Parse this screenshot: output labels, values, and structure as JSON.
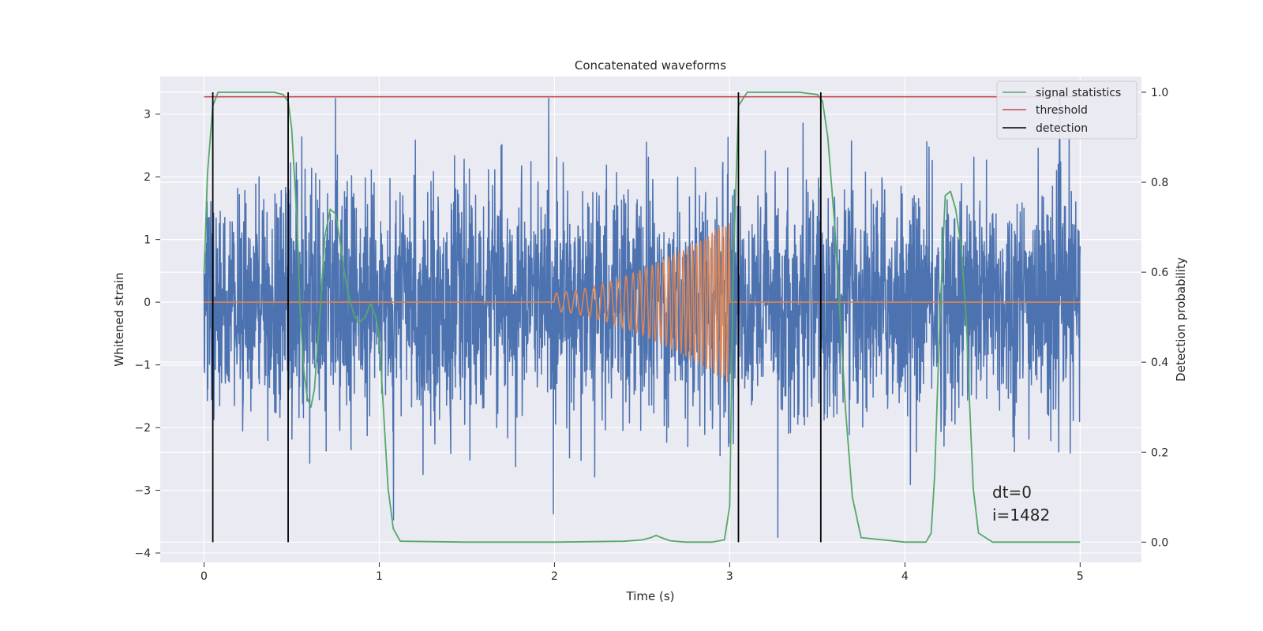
{
  "chart_data": {
    "type": "line",
    "title": "Concatenated waveforms",
    "xlabel": "Time (s)",
    "ylabel": "Whitened strain",
    "y2label": "Detection probability",
    "xlim": [
      -0.25,
      5.35
    ],
    "ylim": [
      -4.15,
      3.6
    ],
    "y2lim": [
      -0.045,
      1.035
    ],
    "x_ticks": [
      0,
      1,
      2,
      3,
      4,
      5
    ],
    "y_ticks": [
      -4,
      -3,
      -2,
      -1,
      0,
      1,
      2,
      3
    ],
    "y2_ticks": [
      0.0,
      0.2,
      0.4,
      0.6,
      0.8,
      1.0
    ],
    "grid": true,
    "legend_position": "upper right",
    "colors": {
      "background": "#eaeaf2",
      "grid": "#ffffff",
      "strain": "#4c72b0",
      "waveform": "#dd8452",
      "signal_statistics": "#55a868",
      "threshold": "#c44e52",
      "detection": "#000000"
    },
    "series": [
      {
        "name": "",
        "axis": "left",
        "kind": "noise",
        "x_range": [
          0,
          5
        ],
        "std": 0.9
      },
      {
        "name": "",
        "axis": "left",
        "kind": "chirp",
        "x_range": [
          0,
          5
        ],
        "chirp_start": 2.0,
        "chirp_end": 3.0,
        "amplitude_start": 0.15,
        "amplitude_end": 1.3,
        "freq_start": 18,
        "freq_end": 55
      },
      {
        "name": "signal statistics",
        "axis": "right",
        "x": [
          0.0,
          0.02,
          0.05,
          0.08,
          0.12,
          0.4,
          0.45,
          0.48,
          0.5,
          0.53,
          0.55,
          0.57,
          0.59,
          0.61,
          0.63,
          0.66,
          0.69,
          0.72,
          0.75,
          0.78,
          0.8,
          0.83,
          0.86,
          0.89,
          0.92,
          0.95,
          0.98,
          1.0,
          1.02,
          1.05,
          1.08,
          1.12,
          1.5,
          2.0,
          2.4,
          2.5,
          2.55,
          2.58,
          2.61,
          2.66,
          2.75,
          2.9,
          2.97,
          3.0,
          3.02,
          3.05,
          3.1,
          3.4,
          3.5,
          3.53,
          3.56,
          3.6,
          3.63,
          3.66,
          3.7,
          3.75,
          4.0,
          4.12,
          4.15,
          4.17,
          4.2,
          4.23,
          4.26,
          4.29,
          4.32,
          4.35,
          4.37,
          4.39,
          4.42,
          4.5,
          5.0
        ],
        "y": [
          0.6,
          0.82,
          0.97,
          1.0,
          1.0,
          1.0,
          0.995,
          0.98,
          0.92,
          0.72,
          0.5,
          0.38,
          0.32,
          0.3,
          0.34,
          0.5,
          0.68,
          0.74,
          0.73,
          0.66,
          0.6,
          0.54,
          0.5,
          0.49,
          0.5,
          0.53,
          0.5,
          0.46,
          0.32,
          0.12,
          0.03,
          0.002,
          0.0,
          0.0,
          0.002,
          0.005,
          0.01,
          0.015,
          0.01,
          0.003,
          0.0,
          0.0,
          0.005,
          0.08,
          0.6,
          0.97,
          1.0,
          1.0,
          0.995,
          0.98,
          0.9,
          0.7,
          0.5,
          0.3,
          0.1,
          0.01,
          0.0,
          0.0,
          0.02,
          0.15,
          0.5,
          0.77,
          0.78,
          0.74,
          0.66,
          0.5,
          0.3,
          0.12,
          0.02,
          0.0,
          0.0
        ]
      },
      {
        "name": "threshold",
        "axis": "right",
        "x": [
          0,
          5
        ],
        "y": [
          0.99,
          0.99
        ]
      },
      {
        "name": "detection",
        "axis": "right",
        "kind": "vlines",
        "x": [
          0.05,
          0.48,
          3.05,
          3.52
        ],
        "y_range": [
          0.0,
          1.0
        ]
      }
    ],
    "annotations": [
      "dt=0",
      "i=1482"
    ]
  }
}
